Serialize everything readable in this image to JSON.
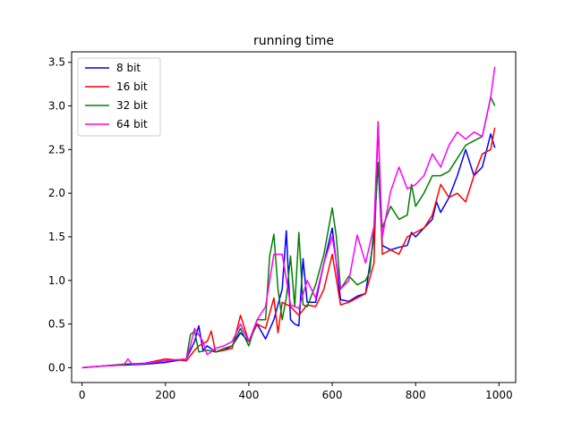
{
  "chart_data": {
    "type": "line",
    "title": "running time",
    "xlabel": "",
    "ylabel": "",
    "xlim": [
      -25,
      1040
    ],
    "ylim": [
      -0.17,
      3.62
    ],
    "xticks": [
      0,
      200,
      400,
      600,
      800,
      1000
    ],
    "yticks": [
      0.0,
      0.5,
      1.0,
      1.5,
      2.0,
      2.5,
      3.0,
      3.5
    ],
    "xtick_labels": [
      "0",
      "200",
      "400",
      "600",
      "800",
      "1000"
    ],
    "ytick_labels": [
      "0.0",
      "0.5",
      "1.0",
      "1.5",
      "2.0",
      "2.5",
      "3.0",
      "3.5"
    ],
    "grid": false,
    "legend_position": "top-left",
    "series": [
      {
        "name": "8 bit",
        "color": "#0000ff",
        "x": [
          0,
          50,
          100,
          150,
          200,
          250,
          270,
          280,
          290,
          300,
          320,
          340,
          360,
          380,
          400,
          420,
          440,
          460,
          480,
          490,
          500,
          510,
          520,
          530,
          540,
          560,
          580,
          600,
          620,
          640,
          660,
          680,
          700,
          710,
          720,
          740,
          760,
          780,
          790,
          800,
          820,
          840,
          850,
          860,
          880,
          900,
          920,
          940,
          960,
          980,
          990
        ],
        "values": [
          0.0,
          0.02,
          0.03,
          0.04,
          0.06,
          0.1,
          0.3,
          0.48,
          0.2,
          0.25,
          0.18,
          0.2,
          0.25,
          0.4,
          0.3,
          0.5,
          0.33,
          0.55,
          0.9,
          1.57,
          0.55,
          0.5,
          0.48,
          1.25,
          0.75,
          0.75,
          1.2,
          1.6,
          0.78,
          0.76,
          0.82,
          0.85,
          1.5,
          2.35,
          1.4,
          1.35,
          1.38,
          1.4,
          1.55,
          1.5,
          1.6,
          1.7,
          1.9,
          1.78,
          1.95,
          2.2,
          2.5,
          2.2,
          2.3,
          2.68,
          2.52
        ]
      },
      {
        "name": "16 bit",
        "color": "#ff0000",
        "x": [
          0,
          50,
          100,
          150,
          200,
          250,
          270,
          280,
          300,
          310,
          320,
          340,
          360,
          380,
          400,
          420,
          440,
          460,
          470,
          480,
          500,
          520,
          540,
          560,
          580,
          600,
          620,
          640,
          660,
          680,
          700,
          710,
          720,
          740,
          760,
          780,
          800,
          820,
          840,
          860,
          880,
          900,
          920,
          940,
          960,
          980,
          990
        ],
        "values": [
          0.0,
          0.02,
          0.04,
          0.05,
          0.1,
          0.08,
          0.2,
          0.25,
          0.3,
          0.42,
          0.18,
          0.2,
          0.22,
          0.6,
          0.3,
          0.5,
          0.45,
          0.8,
          0.4,
          0.75,
          0.7,
          0.6,
          0.72,
          0.7,
          0.9,
          1.3,
          0.72,
          0.75,
          0.8,
          0.85,
          1.2,
          2.82,
          1.3,
          1.35,
          1.3,
          1.5,
          1.55,
          1.6,
          1.75,
          2.1,
          1.95,
          2.0,
          1.9,
          2.2,
          2.45,
          2.5,
          2.75
        ]
      },
      {
        "name": "32 bit",
        "color": "#008000",
        "x": [
          0,
          50,
          100,
          150,
          200,
          250,
          260,
          270,
          280,
          300,
          320,
          340,
          360,
          380,
          400,
          420,
          440,
          450,
          460,
          470,
          480,
          490,
          500,
          510,
          520,
          530,
          540,
          560,
          580,
          600,
          610,
          620,
          640,
          660,
          680,
          690,
          700,
          710,
          720,
          740,
          760,
          780,
          790,
          800,
          820,
          840,
          860,
          880,
          900,
          920,
          940,
          960,
          980,
          990
        ],
        "values": [
          0.0,
          0.02,
          0.04,
          0.05,
          0.08,
          0.1,
          0.38,
          0.42,
          0.18,
          0.2,
          0.18,
          0.22,
          0.25,
          0.45,
          0.25,
          0.55,
          0.55,
          1.28,
          1.53,
          0.9,
          0.55,
          0.8,
          1.28,
          0.7,
          1.55,
          0.72,
          0.7,
          0.95,
          1.3,
          1.83,
          1.5,
          0.9,
          1.05,
          0.95,
          1.0,
          1.1,
          1.6,
          2.35,
          1.6,
          1.85,
          1.7,
          1.75,
          2.1,
          1.85,
          2.0,
          2.2,
          2.2,
          2.25,
          2.4,
          2.55,
          2.6,
          2.65,
          3.1,
          3.0
        ]
      },
      {
        "name": "64 bit",
        "color": "#ff00ff",
        "x": [
          0,
          50,
          100,
          110,
          120,
          150,
          200,
          250,
          260,
          270,
          290,
          300,
          320,
          340,
          360,
          380,
          400,
          420,
          440,
          460,
          480,
          500,
          520,
          540,
          560,
          580,
          600,
          620,
          640,
          660,
          680,
          700,
          710,
          720,
          740,
          760,
          780,
          800,
          820,
          840,
          860,
          880,
          900,
          920,
          940,
          960,
          980,
          990
        ],
        "values": [
          0.0,
          0.02,
          0.03,
          0.1,
          0.04,
          0.05,
          0.08,
          0.1,
          0.25,
          0.45,
          0.3,
          0.15,
          0.22,
          0.25,
          0.3,
          0.5,
          0.3,
          0.55,
          0.7,
          1.3,
          1.3,
          0.72,
          0.68,
          1.0,
          0.8,
          1.2,
          1.5,
          0.9,
          1.0,
          1.52,
          1.2,
          1.62,
          2.8,
          1.5,
          2.02,
          2.3,
          2.05,
          2.1,
          2.2,
          2.45,
          2.3,
          2.55,
          2.7,
          2.62,
          2.7,
          2.65,
          3.1,
          3.45
        ]
      }
    ]
  }
}
